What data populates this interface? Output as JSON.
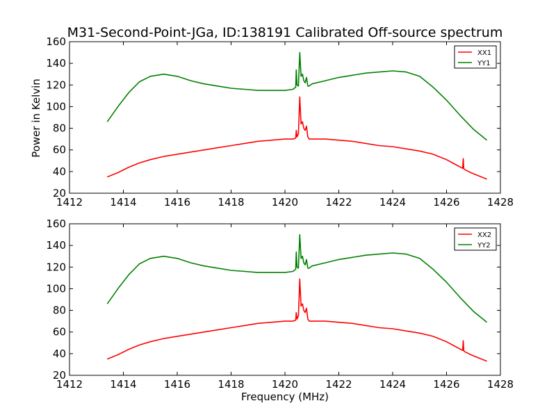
{
  "figure": {
    "title": "M31-Second-Point-JGa, ID:138191 Calibrated Off-source spectrum",
    "xlabel": "Frequency (MHz)",
    "ylabel": "Power in Kelvin"
  },
  "chart_data": [
    {
      "type": "line",
      "title": "M31-Second-Point-JGa, ID:138191 Calibrated Off-source spectrum",
      "xlabel": "",
      "ylabel": "Power in Kelvin",
      "xlim": [
        1412,
        1428
      ],
      "ylim": [
        20,
        160
      ],
      "xticks": [
        "1412",
        "1414",
        "1416",
        "1418",
        "1420",
        "1422",
        "1424",
        "1426",
        "1428"
      ],
      "yticks": [
        "20",
        "40",
        "60",
        "80",
        "100",
        "120",
        "140",
        "160"
      ],
      "grid": false,
      "legend": "top-right",
      "series": [
        {
          "name": "XX1",
          "color": "#ff0000",
          "x": [
            1413.4,
            1413.8,
            1414.2,
            1414.6,
            1415.0,
            1415.5,
            1416.0,
            1416.5,
            1417.0,
            1417.5,
            1418.0,
            1418.5,
            1419.0,
            1419.5,
            1420.0,
            1420.3,
            1420.4,
            1420.42,
            1420.45,
            1420.5,
            1420.55,
            1420.6,
            1420.65,
            1420.7,
            1420.75,
            1420.8,
            1420.85,
            1420.9,
            1421.0,
            1421.5,
            1422.0,
            1422.5,
            1423.0,
            1423.5,
            1424.0,
            1424.5,
            1425.0,
            1425.5,
            1426.0,
            1426.3,
            1426.6,
            1426.62,
            1426.64,
            1426.66,
            1426.9,
            1427.2,
            1427.5
          ],
          "y": [
            35,
            39,
            44,
            48,
            51,
            54,
            56,
            58,
            60,
            62,
            64,
            66,
            68,
            69,
            70,
            70,
            71,
            78,
            72,
            75,
            109,
            84,
            86,
            80,
            78,
            82,
            72,
            70,
            70,
            70,
            69,
            68,
            66,
            64,
            63,
            61,
            59,
            56,
            51,
            47,
            43,
            52,
            43,
            42,
            39,
            36,
            33
          ]
        },
        {
          "name": "YY1",
          "color": "#008000",
          "x": [
            1413.4,
            1413.8,
            1414.2,
            1414.6,
            1415.0,
            1415.5,
            1416.0,
            1416.5,
            1417.0,
            1417.5,
            1418.0,
            1418.5,
            1419.0,
            1419.5,
            1420.0,
            1420.3,
            1420.4,
            1420.42,
            1420.45,
            1420.5,
            1420.55,
            1420.6,
            1420.65,
            1420.7,
            1420.75,
            1420.8,
            1420.85,
            1420.9,
            1421.0,
            1421.5,
            1422.0,
            1422.5,
            1423.0,
            1423.5,
            1424.0,
            1424.5,
            1425.0,
            1425.5,
            1426.0,
            1426.5,
            1427.0,
            1427.5
          ],
          "y": [
            86,
            100,
            113,
            123,
            128,
            130,
            128,
            124,
            121,
            119,
            117,
            116,
            115,
            115,
            115,
            116,
            118,
            134,
            120,
            119,
            150,
            128,
            130,
            124,
            122,
            127,
            119,
            119,
            121,
            124,
            127,
            129,
            131,
            132,
            133,
            132,
            128,
            118,
            106,
            92,
            79,
            69
          ]
        }
      ]
    },
    {
      "type": "line",
      "title": "",
      "xlabel": "Frequency (MHz)",
      "ylabel": "",
      "xlim": [
        1412,
        1428
      ],
      "ylim": [
        20,
        160
      ],
      "xticks": [
        "1412",
        "1414",
        "1416",
        "1418",
        "1420",
        "1422",
        "1424",
        "1426",
        "1428"
      ],
      "yticks": [
        "20",
        "40",
        "60",
        "80",
        "100",
        "120",
        "140",
        "160"
      ],
      "grid": false,
      "legend": "top-right",
      "series": [
        {
          "name": "XX2",
          "color": "#ff0000",
          "x": [
            1413.4,
            1413.8,
            1414.2,
            1414.6,
            1415.0,
            1415.5,
            1416.0,
            1416.5,
            1417.0,
            1417.5,
            1418.0,
            1418.5,
            1419.0,
            1419.5,
            1420.0,
            1420.3,
            1420.4,
            1420.42,
            1420.45,
            1420.5,
            1420.55,
            1420.6,
            1420.65,
            1420.7,
            1420.75,
            1420.8,
            1420.85,
            1420.9,
            1421.0,
            1421.5,
            1422.0,
            1422.5,
            1423.0,
            1423.5,
            1424.0,
            1424.5,
            1425.0,
            1425.5,
            1426.0,
            1426.3,
            1426.6,
            1426.62,
            1426.64,
            1426.66,
            1426.9,
            1427.2,
            1427.5
          ],
          "y": [
            35,
            39,
            44,
            48,
            51,
            54,
            56,
            58,
            60,
            62,
            64,
            66,
            68,
            69,
            70,
            70,
            71,
            78,
            72,
            75,
            109,
            84,
            86,
            80,
            78,
            82,
            72,
            70,
            70,
            70,
            69,
            68,
            66,
            64,
            63,
            61,
            59,
            56,
            51,
            47,
            43,
            52,
            43,
            42,
            39,
            36,
            33
          ]
        },
        {
          "name": "YY2",
          "color": "#008000",
          "x": [
            1413.4,
            1413.8,
            1414.2,
            1414.6,
            1415.0,
            1415.5,
            1416.0,
            1416.5,
            1417.0,
            1417.5,
            1418.0,
            1418.5,
            1419.0,
            1419.5,
            1420.0,
            1420.3,
            1420.4,
            1420.42,
            1420.45,
            1420.5,
            1420.55,
            1420.6,
            1420.65,
            1420.7,
            1420.75,
            1420.8,
            1420.85,
            1420.9,
            1421.0,
            1421.5,
            1422.0,
            1422.5,
            1423.0,
            1423.5,
            1424.0,
            1424.5,
            1425.0,
            1425.5,
            1426.0,
            1426.5,
            1427.0,
            1427.5
          ],
          "y": [
            86,
            100,
            113,
            123,
            128,
            130,
            128,
            124,
            121,
            119,
            117,
            116,
            115,
            115,
            115,
            116,
            118,
            134,
            120,
            119,
            150,
            128,
            130,
            124,
            122,
            127,
            119,
            119,
            121,
            124,
            127,
            129,
            131,
            132,
            133,
            132,
            128,
            118,
            106,
            92,
            79,
            69
          ]
        }
      ]
    }
  ]
}
